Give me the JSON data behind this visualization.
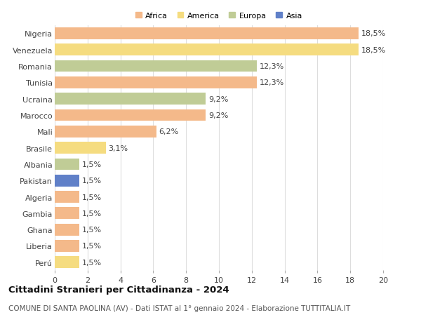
{
  "countries": [
    "Nigeria",
    "Venezuela",
    "Romania",
    "Tunisia",
    "Ucraina",
    "Marocco",
    "Mali",
    "Brasile",
    "Albania",
    "Pakistan",
    "Algeria",
    "Gambia",
    "Ghana",
    "Liberia",
    "Perú"
  ],
  "values": [
    18.5,
    18.5,
    12.3,
    12.3,
    9.2,
    9.2,
    6.2,
    3.1,
    1.5,
    1.5,
    1.5,
    1.5,
    1.5,
    1.5,
    1.5
  ],
  "continents": [
    "Africa",
    "America",
    "Europa",
    "Africa",
    "Europa",
    "Africa",
    "Africa",
    "America",
    "Europa",
    "Asia",
    "Africa",
    "Africa",
    "Africa",
    "Africa",
    "America"
  ],
  "colors": {
    "Africa": "#F4B98A",
    "America": "#F5DC80",
    "Europa": "#C0CC96",
    "Asia": "#6080C8"
  },
  "legend_order": [
    "Africa",
    "America",
    "Europa",
    "Asia"
  ],
  "legend_colors": [
    "#F4B98A",
    "#F5DC80",
    "#C0CC96",
    "#6080C8"
  ],
  "xlim": [
    0,
    20
  ],
  "xticks": [
    0,
    2,
    4,
    6,
    8,
    10,
    12,
    14,
    16,
    18,
    20
  ],
  "title": "Cittadini Stranieri per Cittadinanza - 2024",
  "subtitle": "COMUNE DI SANTA PAOLINA (AV) - Dati ISTAT al 1° gennaio 2024 - Elaborazione TUTTITALIA.IT",
  "bar_height": 0.72,
  "background_color": "#ffffff",
  "grid_color": "#dddddd",
  "label_fontsize": 8,
  "value_fontsize": 8,
  "title_fontsize": 9.5,
  "subtitle_fontsize": 7.5
}
